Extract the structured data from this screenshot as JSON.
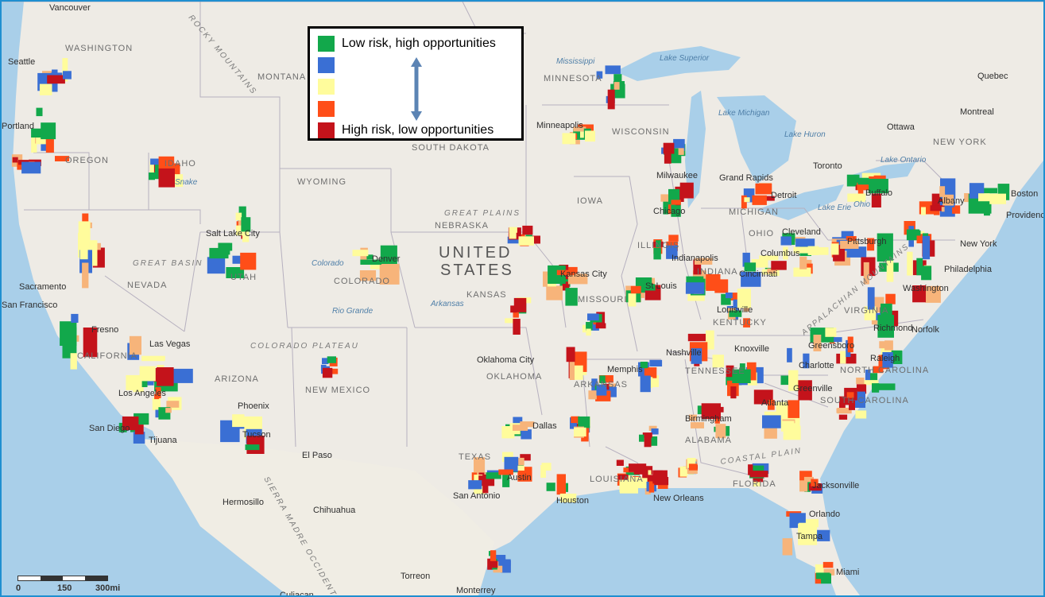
{
  "legend": {
    "items": [
      {
        "label": "Low risk, high opportunities",
        "color": "#12a84b"
      },
      {
        "label": "",
        "color": "#3a6fd4"
      },
      {
        "label": "",
        "color": "#fffc9c"
      },
      {
        "label": "",
        "color": "#ff4e18"
      },
      {
        "label": "High risk, low opportunities",
        "color": "#c4131b"
      }
    ],
    "arrow_color": "#5c84b4"
  },
  "scale_bar": {
    "labels": [
      "0",
      "150",
      "300mi"
    ]
  },
  "map_labels": {
    "countries": [
      {
        "name": "UNITED"
      },
      {
        "name": "STATES"
      }
    ],
    "states": [
      "WASHINGTON",
      "MONTANA",
      "MINNESOTA",
      "OREGON",
      "IDAHO",
      "SOUTH DAKOTA",
      "WISCONSIN",
      "WYOMING",
      "IOWA",
      "NEBRASKA",
      "MICHIGAN",
      "NEVADA",
      "UTAH",
      "COLORADO",
      "ILLINOIS",
      "INDIANA",
      "OHIO",
      "KANSAS",
      "MISSOURI",
      "KENTUCKY",
      "VIRGINIA",
      "CALIFORNIA",
      "ARIZONA",
      "NEW MEXICO",
      "OKLAHOMA",
      "ARKANSAS",
      "TENNESSEE",
      "NORTH CAROLINA",
      "SOUTH CAROLINA",
      "TEXAS",
      "ALABAMA",
      "LOUISIANA",
      "FLORIDA",
      "NEW YORK"
    ],
    "cities": [
      "Vancouver",
      "Seattle",
      "Portland",
      "Minneapolis",
      "Milwaukee",
      "Grand Rapids",
      "Detroit",
      "Chicago",
      "Toronto",
      "Buffalo",
      "Albany",
      "Boston",
      "Providence",
      "Quebec",
      "Montreal",
      "Ottawa",
      "Salt Lake City",
      "Denver",
      "Kansas City",
      "St Louis",
      "Indianapolis",
      "Columbus",
      "Cleveland",
      "Pittsburgh",
      "New York",
      "Philadelphia",
      "Washington",
      "Cincinnati",
      "Louisville",
      "Richmond",
      "Norfolk",
      "Sacramento",
      "San Francisco",
      "Fresno",
      "Las Vegas",
      "Los Angeles",
      "San Diego",
      "Tijuana",
      "Phoenix",
      "Tucson",
      "El Paso",
      "Oklahoma City",
      "Memphis",
      "Nashville",
      "Knoxville",
      "Greensboro",
      "Raleigh",
      "Charlotte",
      "Greenville",
      "Atlanta",
      "Birmingham",
      "Dallas",
      "Austin",
      "San Antonio",
      "Houston",
      "New Orleans",
      "Jacksonville",
      "Orlando",
      "Tampa",
      "Miami",
      "Hermosillo",
      "Chihuahua",
      "Torreon",
      "Monterrey",
      "Culiacan"
    ],
    "regions": [
      "ROCKY MOUNTAINS",
      "GREAT BASIN",
      "GREAT PLAINS",
      "COLORADO PLATEAU",
      "COASTAL PLAIN",
      "APPALACHIAN MOUNTAINS",
      "SIERRA MADRE OCCIDENTAL"
    ],
    "water": [
      "Lake Superior",
      "Lake Michigan",
      "Lake Huron",
      "Lake Erie",
      "Lake Ontario",
      "Mississippi",
      "Snake",
      "Colorado",
      "Rio Grande",
      "Arkansas",
      "Ohio"
    ]
  },
  "colors": {
    "water": "#a9cfe9",
    "land": "#eeebe5",
    "mexico": "#f0ede4",
    "border": "#b6b0bf"
  }
}
